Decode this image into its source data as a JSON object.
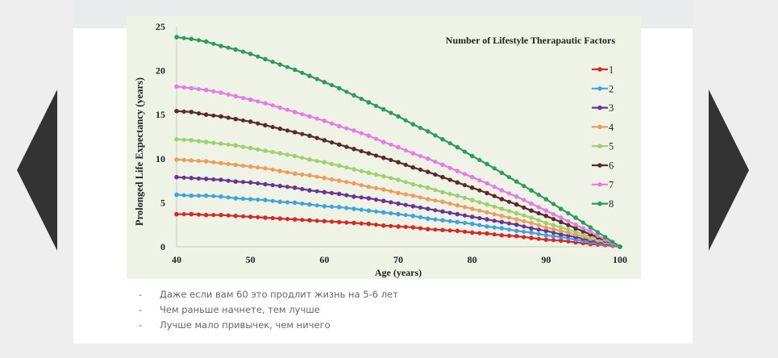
{
  "navigation": {
    "prev_icon": "triangle-left-icon",
    "next_icon": "triangle-right-icon"
  },
  "bullets": [
    {
      "marker": "-",
      "text": "Даже если вам 60 это продлит жизнь на 5-6 лет"
    },
    {
      "marker": "-",
      "text": "Чем раньше начнете, тем лучше"
    },
    {
      "marker": "-",
      "text": "Лучше мало привычек, чем ничего"
    }
  ],
  "chart_data": {
    "type": "line",
    "title": "",
    "xlabel": "Age (years)",
    "ylabel": "Prolonged Life Expectancy (years)",
    "xlim": [
      40,
      100
    ],
    "ylim": [
      0,
      25
    ],
    "xticks": [
      "40",
      "50",
      "60",
      "70",
      "80",
      "90",
      "100"
    ],
    "yticks": [
      "0",
      "5",
      "10",
      "15",
      "20",
      "25"
    ],
    "grid": false,
    "legend_title": "Number of Lifestyle Therapautic Factors",
    "legend_position": "top-right",
    "x": [
      40,
      42,
      44,
      46,
      48,
      50,
      52,
      54,
      56,
      58,
      60,
      62,
      64,
      66,
      68,
      70,
      72,
      74,
      76,
      78,
      80,
      82,
      84,
      86,
      88,
      90,
      92,
      94,
      96,
      98,
      100
    ],
    "series": [
      {
        "name": "1",
        "color": "#d42a2a",
        "values": [
          3.7,
          3.7,
          3.6,
          3.6,
          3.5,
          3.4,
          3.3,
          3.2,
          3.1,
          3.0,
          2.9,
          2.8,
          2.7,
          2.6,
          2.4,
          2.3,
          2.2,
          2.0,
          1.9,
          1.8,
          1.6,
          1.5,
          1.3,
          1.2,
          1.0,
          0.8,
          0.7,
          0.5,
          0.3,
          0.2,
          0
        ]
      },
      {
        "name": "2",
        "color": "#3fa4dc",
        "values": [
          5.9,
          5.8,
          5.8,
          5.7,
          5.5,
          5.4,
          5.3,
          5.1,
          5.0,
          4.8,
          4.6,
          4.5,
          4.3,
          4.1,
          3.9,
          3.7,
          3.5,
          3.2,
          3.0,
          2.8,
          2.6,
          2.3,
          2.1,
          1.8,
          1.6,
          1.3,
          1.1,
          0.8,
          0.5,
          0.3,
          0
        ]
      },
      {
        "name": "3",
        "color": "#6a3596",
        "values": [
          7.9,
          7.8,
          7.7,
          7.6,
          7.4,
          7.3,
          7.1,
          6.9,
          6.7,
          6.4,
          6.2,
          6.0,
          5.7,
          5.5,
          5.2,
          4.9,
          4.6,
          4.3,
          4.0,
          3.7,
          3.4,
          3.1,
          2.8,
          2.5,
          2.1,
          1.8,
          1.4,
          1.1,
          0.7,
          0.4,
          0
        ]
      },
      {
        "name": "4",
        "color": "#eb9f5e",
        "values": [
          9.9,
          9.8,
          9.7,
          9.5,
          9.3,
          9.1,
          8.9,
          8.6,
          8.3,
          8.1,
          7.8,
          7.5,
          7.2,
          6.8,
          6.5,
          6.1,
          5.8,
          5.4,
          5.1,
          4.7,
          4.3,
          3.9,
          3.5,
          3.1,
          2.7,
          2.2,
          1.8,
          1.4,
          0.9,
          0.5,
          0
        ]
      },
      {
        "name": "5",
        "color": "#9fd16a",
        "values": [
          12.2,
          12.1,
          11.9,
          11.7,
          11.5,
          11.2,
          10.9,
          10.6,
          10.3,
          9.9,
          9.6,
          9.2,
          8.8,
          8.4,
          8.0,
          7.6,
          7.1,
          6.7,
          6.2,
          5.8,
          5.3,
          4.8,
          4.3,
          3.8,
          3.3,
          2.7,
          2.2,
          1.7,
          1.1,
          0.6,
          0
        ]
      },
      {
        "name": "6",
        "color": "#5a2a2e",
        "values": [
          15.4,
          15.3,
          15.0,
          14.8,
          14.5,
          14.2,
          13.8,
          13.4,
          13.0,
          12.6,
          12.1,
          11.6,
          11.1,
          10.6,
          10.1,
          9.6,
          9.0,
          8.5,
          7.9,
          7.3,
          6.7,
          6.1,
          5.4,
          4.8,
          4.1,
          3.5,
          2.8,
          2.1,
          1.4,
          0.7,
          0
        ]
      },
      {
        "name": "7",
        "color": "#e57be6",
        "values": [
          18.2,
          18.0,
          17.8,
          17.5,
          17.1,
          16.7,
          16.3,
          15.8,
          15.3,
          14.8,
          14.3,
          13.7,
          13.2,
          12.6,
          11.9,
          11.3,
          10.6,
          10.0,
          9.3,
          8.6,
          7.9,
          7.2,
          6.4,
          5.7,
          4.9,
          4.1,
          3.3,
          2.5,
          1.7,
          0.8,
          0
        ]
      },
      {
        "name": "8",
        "color": "#2f9a5e",
        "values": [
          23.8,
          23.6,
          23.3,
          22.8,
          22.4,
          21.9,
          21.3,
          20.7,
          20.1,
          19.4,
          18.7,
          18.0,
          17.2,
          16.4,
          15.6,
          14.8,
          13.9,
          13.1,
          12.2,
          11.3,
          10.3,
          9.4,
          8.4,
          7.4,
          6.4,
          5.4,
          4.3,
          3.3,
          2.2,
          1.1,
          0
        ]
      }
    ]
  }
}
